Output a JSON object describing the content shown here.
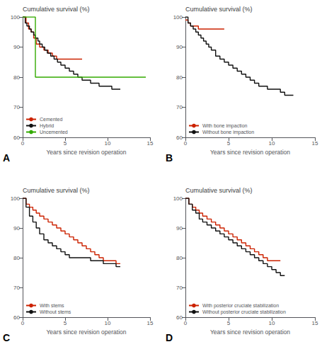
{
  "chart_data": [
    {
      "type": "step",
      "title": "Cumulative survival (%)",
      "xlabel": "Years since revision operation",
      "xlim": [
        0,
        15
      ],
      "ylim": [
        60,
        100
      ],
      "xticks": [
        0,
        5,
        10,
        15
      ],
      "yticks": [
        60,
        70,
        80,
        90,
        100
      ],
      "grid": false,
      "legend": "lower left",
      "annotations": [
        "A"
      ],
      "series": [
        {
          "name": "Cemented",
          "color": "#cc2200",
          "x": [
            0,
            0.4,
            0.7,
            1.0,
            1.3,
            1.6,
            2.0,
            2.5,
            3.0,
            3.5,
            4.0,
            4.5,
            5.0,
            5.5,
            6.0,
            6.5,
            7.0
          ],
          "values": [
            100,
            98,
            96,
            95,
            93,
            91,
            90,
            89,
            88,
            87,
            86,
            86,
            86,
            86,
            86,
            86,
            86
          ]
        },
        {
          "name": "Hybrid",
          "color": "#111111",
          "x": [
            0,
            0.3,
            0.5,
            0.8,
            1.0,
            1.3,
            1.5,
            1.8,
            2.0,
            2.3,
            2.6,
            2.9,
            3.3,
            3.7,
            4.1,
            4.5,
            5.0,
            5.5,
            6.0,
            6.5,
            7.0,
            7.5,
            8.0,
            8.5,
            9.0,
            9.5,
            10.0,
            10.5,
            11.0,
            11.5
          ],
          "values": [
            100,
            98,
            97,
            96,
            95,
            94,
            93,
            92,
            91,
            90,
            89,
            88,
            87,
            86,
            85,
            84,
            83,
            82,
            81,
            80,
            79,
            79,
            78,
            78,
            77,
            77,
            77,
            76,
            76,
            76
          ]
        },
        {
          "name": "Uncemented",
          "color": "#33aa00",
          "x": [
            0,
            0.05,
            1.5,
            1.5,
            14.5
          ],
          "values": [
            100,
            100,
            100,
            80,
            80
          ]
        }
      ]
    },
    {
      "type": "step",
      "title": "Cumulative survival (%)",
      "xlabel": "Years since revision operation",
      "xlim": [
        0,
        15
      ],
      "ylim": [
        60,
        100
      ],
      "xticks": [
        0,
        5,
        10,
        15
      ],
      "yticks": [
        60,
        70,
        80,
        90,
        100
      ],
      "grid": false,
      "legend": "lower left",
      "annotations": [
        "B"
      ],
      "series": [
        {
          "name": "With bone impaction",
          "color": "#cc2200",
          "x": [
            0,
            0.3,
            0.6,
            1.0,
            1.5,
            2.0,
            2.5,
            3.0,
            3.5,
            4.0,
            4.5
          ],
          "values": [
            99,
            98,
            97,
            97,
            96,
            96,
            96,
            96,
            96,
            96,
            96
          ]
        },
        {
          "name": "Without bone impaction",
          "color": "#111111",
          "x": [
            0,
            0.3,
            0.6,
            0.9,
            1.2,
            1.5,
            1.8,
            2.1,
            2.4,
            2.7,
            3.0,
            3.5,
            4.0,
            4.5,
            5.0,
            5.5,
            6.0,
            6.5,
            7.0,
            7.5,
            8.0,
            8.5,
            9.0,
            9.5,
            10.0,
            10.5,
            11.0,
            11.5,
            12.0,
            12.5
          ],
          "values": [
            100,
            98,
            97,
            96,
            95,
            94,
            93,
            92,
            91,
            90,
            89,
            87,
            86,
            85,
            84,
            83,
            82,
            81,
            80,
            79,
            78,
            77,
            77,
            76,
            76,
            76,
            75,
            74,
            74,
            74
          ]
        }
      ]
    },
    {
      "type": "step",
      "title": "Cumulative survival (%)",
      "xlabel": "Years since revision operation",
      "xlim": [
        0,
        15
      ],
      "ylim": [
        60,
        100
      ],
      "xticks": [
        0,
        5,
        10,
        15
      ],
      "yticks": [
        60,
        70,
        80,
        90,
        100
      ],
      "grid": false,
      "legend": "lower left",
      "annotations": [
        "C"
      ],
      "series": [
        {
          "name": "With stems",
          "color": "#cc2200",
          "x": [
            0,
            0.4,
            0.8,
            1.2,
            1.6,
            2.0,
            2.5,
            3.0,
            3.5,
            4.0,
            4.5,
            5.0,
            5.5,
            6.0,
            6.5,
            7.0,
            7.5,
            8.0,
            8.5,
            9.0,
            9.5,
            10.0,
            10.5,
            11.0,
            11.5
          ],
          "values": [
            100,
            98,
            97,
            96,
            95,
            94,
            93,
            92,
            91,
            90,
            89,
            88,
            87,
            86,
            85,
            84,
            83,
            82,
            81,
            80,
            79,
            79,
            79,
            78,
            78
          ]
        },
        {
          "name": "Without stems",
          "color": "#111111",
          "x": [
            0,
            0.4,
            0.8,
            1.2,
            1.6,
            2.0,
            2.5,
            3.0,
            3.5,
            4.0,
            4.5,
            5.0,
            5.5,
            6.0,
            6.5,
            7.0,
            7.5,
            8.0,
            8.5,
            9.0,
            9.5,
            10.0,
            10.5,
            11.0,
            11.5
          ],
          "values": [
            100,
            97,
            94,
            92,
            90,
            88,
            86,
            85,
            84,
            83,
            82,
            81,
            80,
            80,
            80,
            80,
            80,
            79,
            79,
            79,
            78,
            78,
            78,
            77,
            77
          ]
        }
      ]
    },
    {
      "type": "step",
      "title": "Cumulative survival (%)",
      "xlabel": "Years since revision operation",
      "xlim": [
        0,
        15
      ],
      "ylim": [
        60,
        100
      ],
      "xticks": [
        0,
        5,
        10,
        15
      ],
      "yticks": [
        60,
        70,
        80,
        90,
        100
      ],
      "grid": false,
      "legend": "lower left",
      "annotations": [
        "D"
      ],
      "series": [
        {
          "name": "With posterior cruciate stabilization",
          "color": "#cc2200",
          "x": [
            0,
            0.4,
            0.8,
            1.2,
            1.6,
            2.0,
            2.5,
            3.0,
            3.5,
            4.0,
            4.5,
            5.0,
            5.5,
            6.0,
            6.5,
            7.0,
            7.5,
            8.0,
            8.5,
            9.0,
            9.5,
            10.0,
            10.5,
            11.0
          ],
          "values": [
            100,
            98,
            97,
            96,
            95,
            94,
            93,
            92,
            91,
            90,
            89,
            88,
            87,
            86,
            85,
            84,
            83,
            82,
            81,
            80,
            79,
            79,
            79,
            79
          ]
        },
        {
          "name": "Without posterior cruciate stabilization",
          "color": "#111111",
          "x": [
            0,
            0.4,
            0.8,
            1.2,
            1.6,
            2.0,
            2.5,
            3.0,
            3.5,
            4.0,
            4.5,
            5.0,
            5.5,
            6.0,
            6.5,
            7.0,
            7.5,
            8.0,
            8.5,
            9.0,
            9.5,
            10.0,
            10.5,
            11.0,
            11.5
          ],
          "values": [
            100,
            98,
            96,
            95,
            93,
            92,
            91,
            90,
            89,
            88,
            87,
            86,
            85,
            84,
            83,
            82,
            81,
            80,
            79,
            78,
            77,
            76,
            75,
            74,
            74
          ]
        }
      ]
    }
  ]
}
